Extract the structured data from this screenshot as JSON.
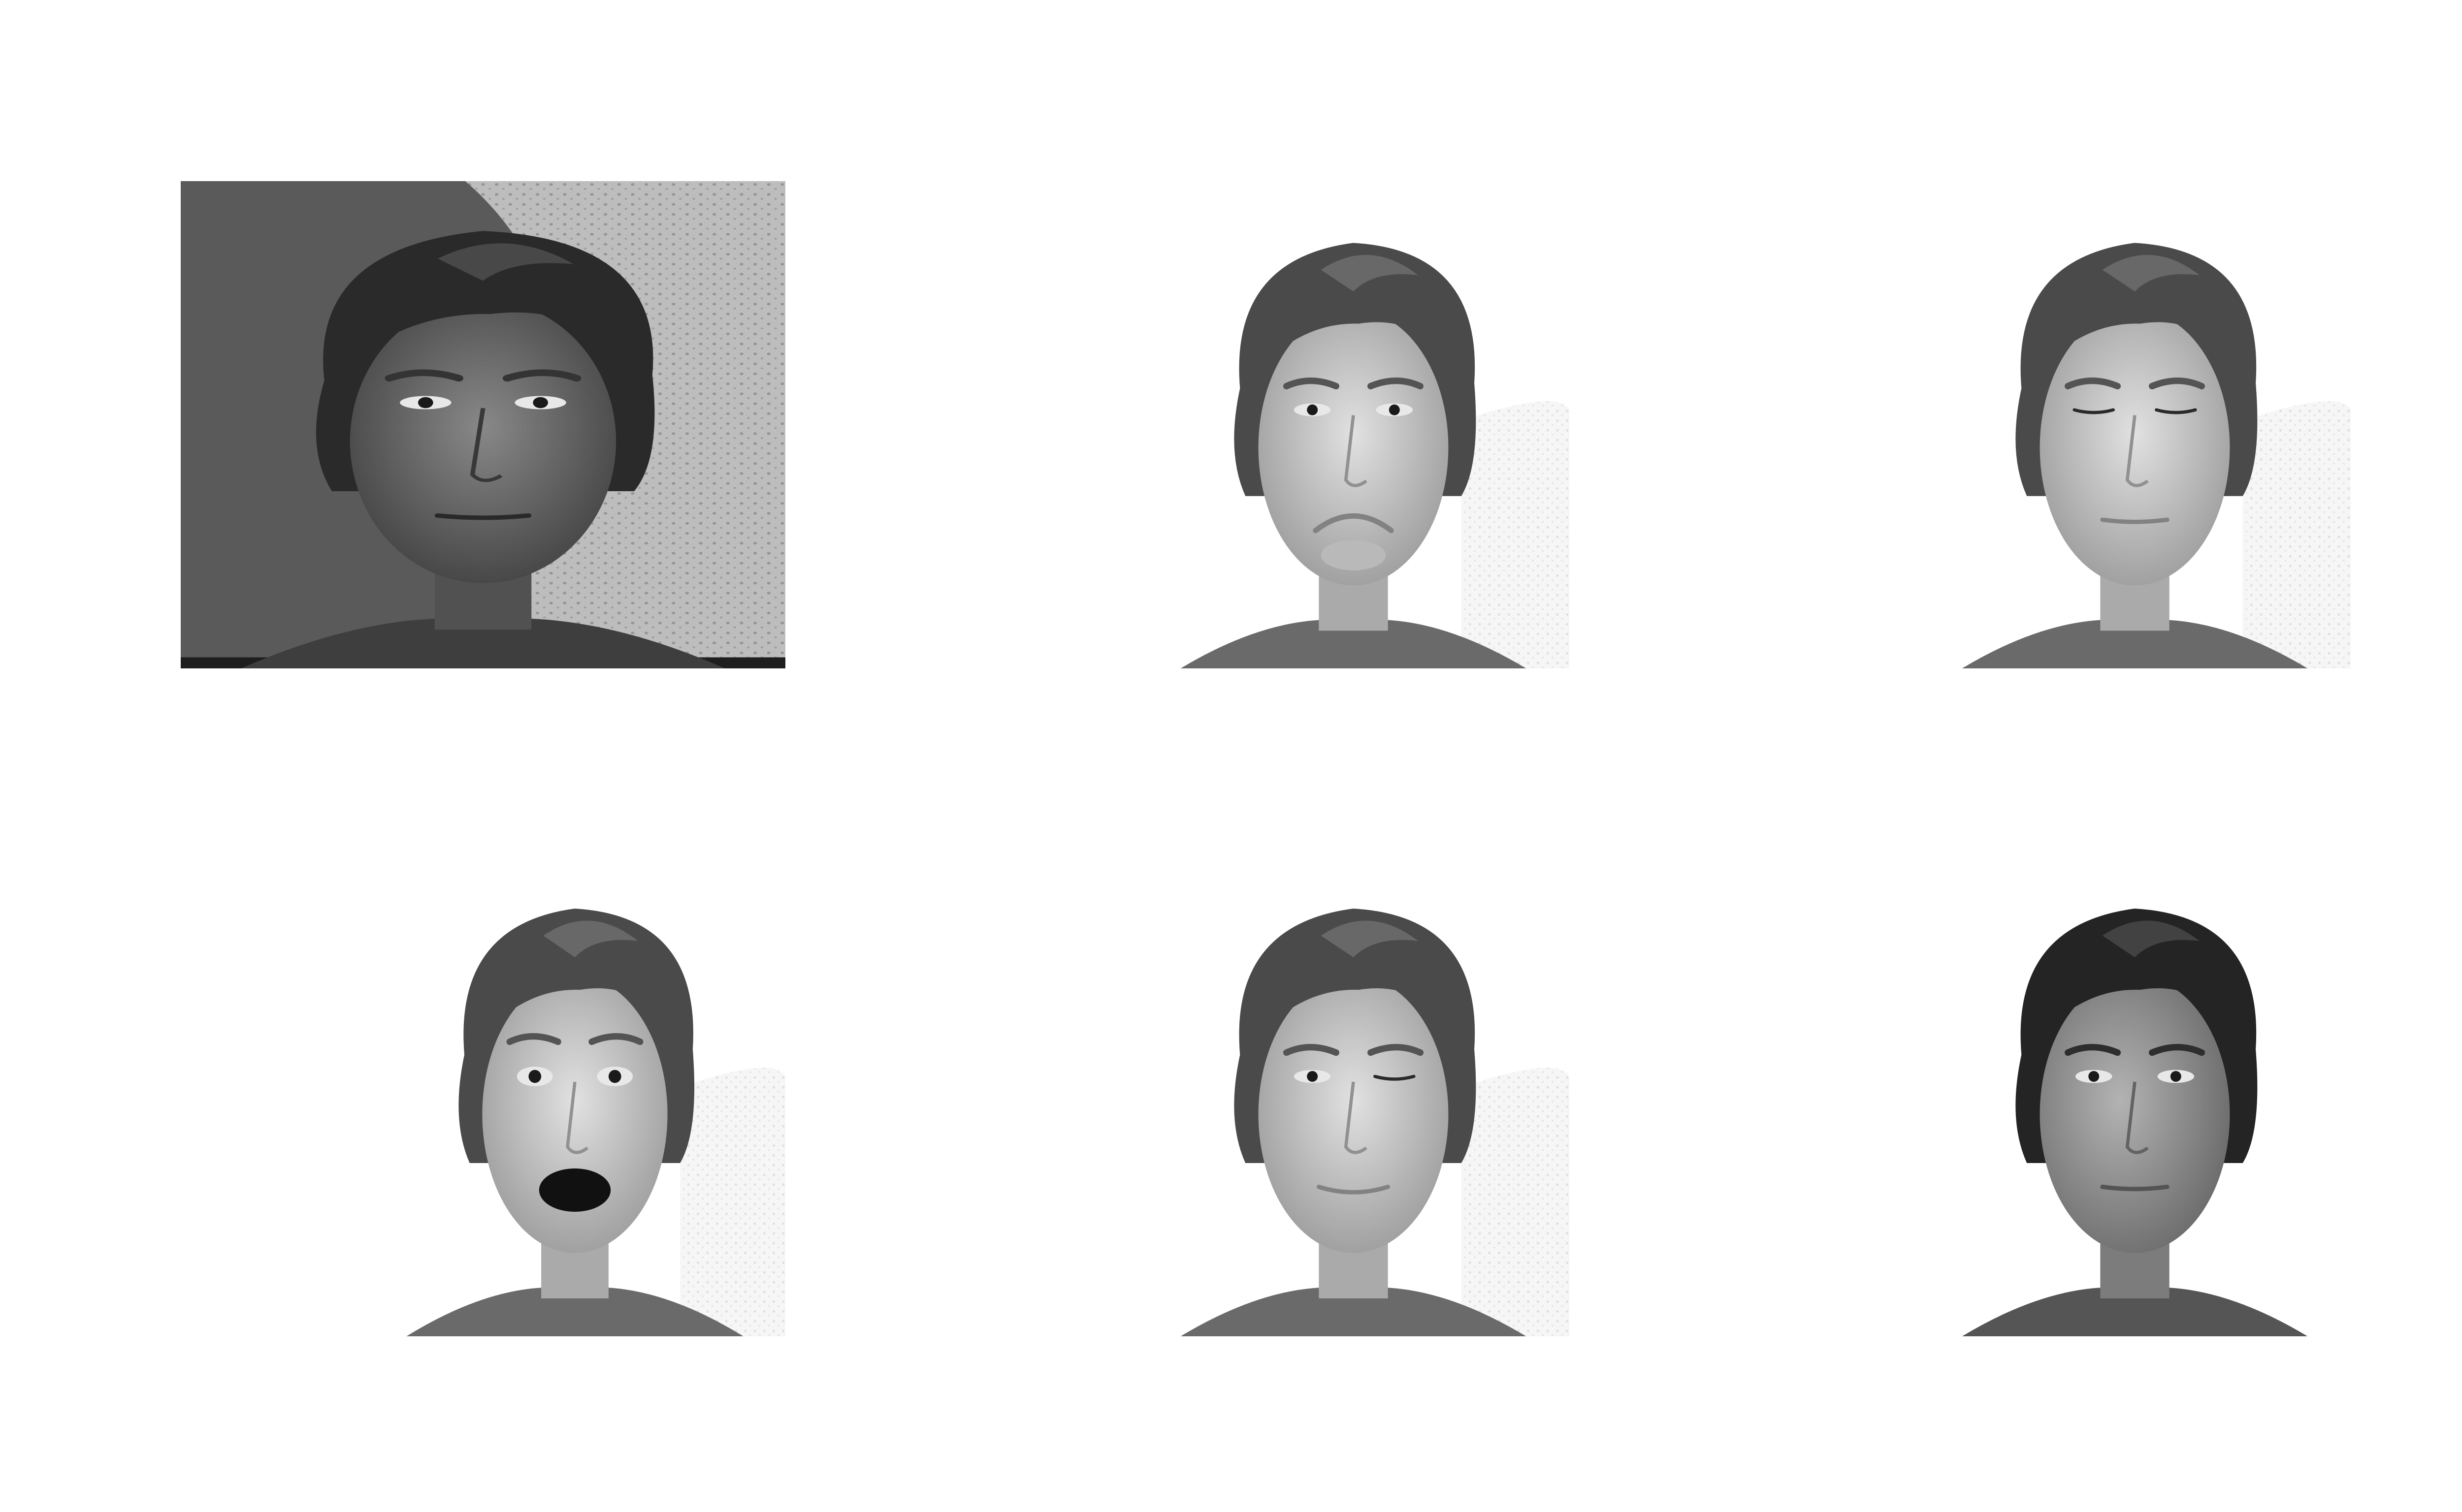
{
  "figure": {
    "layout": {
      "rows": 2,
      "columns": 3
    },
    "background_color": "#ffffff",
    "panels": [
      {
        "id": "p1",
        "row": 1,
        "column": 1,
        "expression": "neutral",
        "lighting": "side-lit",
        "background": "textured-wall-with-shadow",
        "mouth": "closed",
        "eyes": "open",
        "colors": {
          "bg": "#5a5a5a",
          "bg_light": "#bdbdbd",
          "skin": "#6f6f6f",
          "hair": "#2a2a2a",
          "shirt": "#3e3e3e"
        }
      },
      {
        "id": "p2",
        "row": 1,
        "column": 2,
        "expression": "sad",
        "lighting": "frontal",
        "background": "white-textured",
        "mouth": "pout",
        "eyes": "open",
        "colors": {
          "bg": "#ffffff",
          "bg_light": "#eeeeee",
          "skin": "#c8c8c8",
          "hair": "#4a4a4a",
          "shirt": "#6a6a6a"
        }
      },
      {
        "id": "p3",
        "row": 1,
        "column": 3,
        "expression": "sleepy",
        "lighting": "frontal",
        "background": "white-textured",
        "mouth": "closed",
        "eyes": "closed",
        "colors": {
          "bg": "#ffffff",
          "bg_light": "#eeeeee",
          "skin": "#c8c8c8",
          "hair": "#4a4a4a",
          "shirt": "#6a6a6a"
        }
      },
      {
        "id": "p4",
        "row": 2,
        "column": 1,
        "expression": "surprised",
        "lighting": "frontal",
        "background": "white-textured",
        "mouth": "open",
        "eyes": "wide",
        "colors": {
          "bg": "#ffffff",
          "bg_light": "#eeeeee",
          "skin": "#c8c8c8",
          "hair": "#4a4a4a",
          "shirt": "#6a6a6a"
        }
      },
      {
        "id": "p5",
        "row": 2,
        "column": 2,
        "expression": "wink",
        "lighting": "frontal",
        "background": "white-textured",
        "mouth": "slight-smile",
        "eyes": "wink",
        "colors": {
          "bg": "#ffffff",
          "bg_light": "#eeeeee",
          "skin": "#c8c8c8",
          "hair": "#4a4a4a",
          "shirt": "#6a6a6a"
        }
      },
      {
        "id": "p6",
        "row": 2,
        "column": 3,
        "expression": "neutral",
        "lighting": "left-lit",
        "background": "white",
        "mouth": "closed",
        "eyes": "open",
        "colors": {
          "bg": "#ffffff",
          "bg_light": "#f4f4f4",
          "skin": "#9a9a9a",
          "hair": "#242424",
          "shirt": "#555555"
        }
      }
    ]
  }
}
